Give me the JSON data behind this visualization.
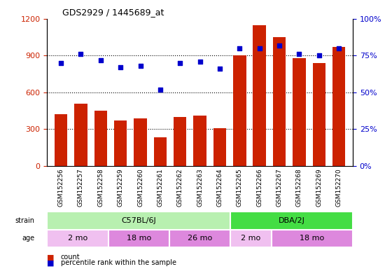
{
  "title": "GDS2929 / 1445689_at",
  "samples": [
    "GSM152256",
    "GSM152257",
    "GSM152258",
    "GSM152259",
    "GSM152260",
    "GSM152261",
    "GSM152262",
    "GSM152263",
    "GSM152264",
    "GSM152265",
    "GSM152266",
    "GSM152267",
    "GSM152268",
    "GSM152269",
    "GSM152270"
  ],
  "counts": [
    420,
    510,
    450,
    370,
    390,
    230,
    400,
    410,
    310,
    900,
    1150,
    1050,
    880,
    840,
    970
  ],
  "percentile": [
    70,
    76,
    72,
    67,
    68,
    52,
    70,
    71,
    66,
    80,
    80,
    82,
    76,
    75,
    80
  ],
  "bar_color": "#cc2200",
  "dot_color": "#0000cc",
  "left_ylim": [
    0,
    1200
  ],
  "right_ylim": [
    0,
    100
  ],
  "left_yticks": [
    0,
    300,
    600,
    900,
    1200
  ],
  "right_yticks": [
    0,
    25,
    50,
    75,
    100
  ],
  "right_yticklabels": [
    "0%",
    "25%",
    "50%",
    "75%",
    "100%"
  ],
  "strain_groups": [
    {
      "label": "C57BL/6J",
      "start": 0,
      "end": 9,
      "color": "#b8f0b0"
    },
    {
      "label": "DBA/2J",
      "start": 9,
      "end": 15,
      "color": "#44dd44"
    }
  ],
  "age_groups": [
    {
      "label": "2 mo",
      "start": 0,
      "end": 3,
      "color": "#f0c0f0"
    },
    {
      "label": "18 mo",
      "start": 3,
      "end": 6,
      "color": "#dd88dd"
    },
    {
      "label": "26 mo",
      "start": 6,
      "end": 9,
      "color": "#dd88dd"
    },
    {
      "label": "2 mo",
      "start": 9,
      "end": 11,
      "color": "#f0c0f0"
    },
    {
      "label": "18 mo",
      "start": 11,
      "end": 15,
      "color": "#dd88dd"
    }
  ],
  "legend_count_label": "count",
  "legend_pct_label": "percentile rank within the sample",
  "xtick_bg": "#cccccc",
  "strain_label": "strain",
  "age_label": "age"
}
